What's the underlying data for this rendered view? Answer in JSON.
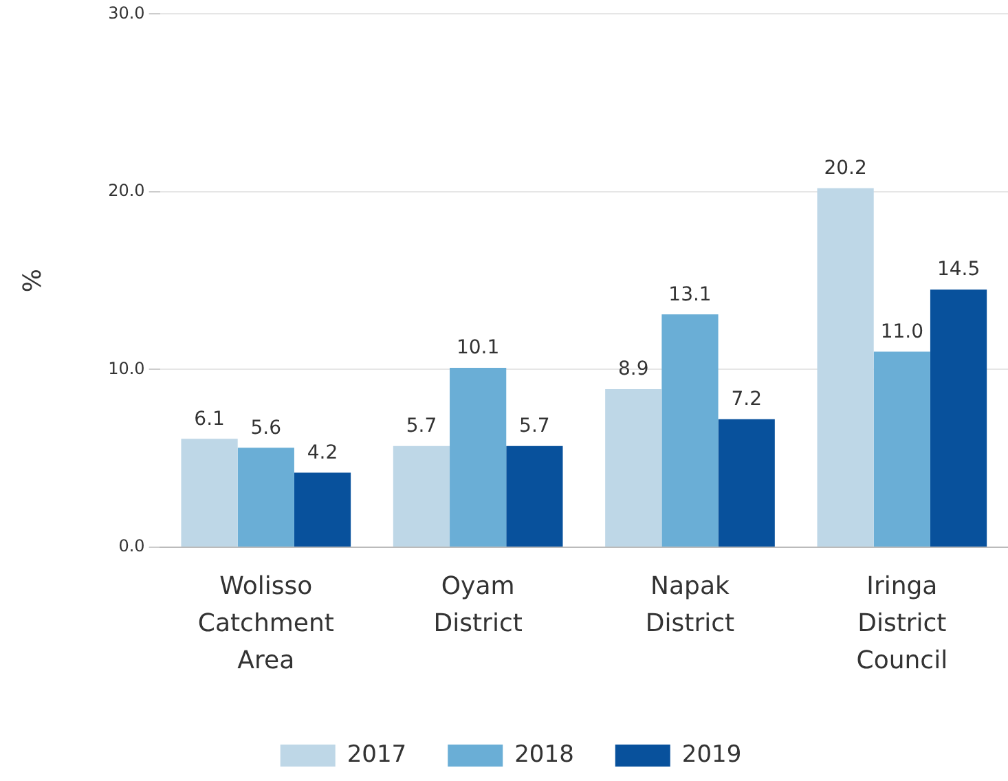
{
  "chart_data": {
    "type": "bar",
    "ylabel": "%",
    "categories": [
      "Wolisso Catchment Area",
      "Oyam District",
      "Napak District",
      "Iringa District Council"
    ],
    "series": [
      {
        "name": "2017",
        "color": "#bed7e7",
        "values": [
          6.1,
          5.7,
          8.9,
          20.2
        ],
        "value_labels": [
          "6.1",
          "5.7",
          "8.9",
          "20.2"
        ]
      },
      {
        "name": "2018",
        "color": "#6aaed6",
        "values": [
          5.6,
          10.1,
          13.1,
          11.0
        ],
        "value_labels": [
          "5.6",
          "10.1",
          "13.1",
          "11.0"
        ]
      },
      {
        "name": "2019",
        "color": "#08519c",
        "values": [
          4.2,
          5.7,
          7.2,
          14.5
        ],
        "value_labels": [
          "4.2",
          "5.7",
          "7.2",
          "14.5"
        ]
      }
    ],
    "ylim": [
      0,
      30
    ],
    "yticks": [
      {
        "value": 0,
        "label": "0.0"
      },
      {
        "value": 10,
        "label": "10.0"
      },
      {
        "value": 20,
        "label": "20.0"
      },
      {
        "value": 30,
        "label": "30.0"
      }
    ],
    "grid": "y",
    "legend": "bottom"
  }
}
